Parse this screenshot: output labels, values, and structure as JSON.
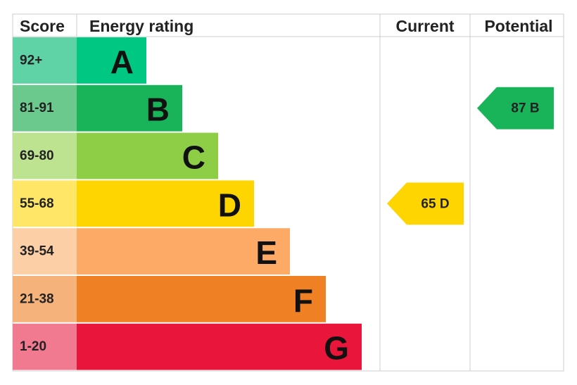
{
  "header": {
    "score": "Score",
    "rating": "Energy rating",
    "current": "Current",
    "potential": "Potential"
  },
  "bands": [
    {
      "range": "92+",
      "letter": "A",
      "color": "#00c781",
      "light": "#5fd3a6"
    },
    {
      "range": "81-91",
      "letter": "B",
      "color": "#19b459",
      "light": "#6cc98e"
    },
    {
      "range": "69-80",
      "letter": "C",
      "color": "#8dce46",
      "light": "#bde390"
    },
    {
      "range": "55-68",
      "letter": "D",
      "color": "#ffd500",
      "light": "#ffe666"
    },
    {
      "range": "39-54",
      "letter": "E",
      "color": "#fcaa65",
      "light": "#fdcfa6"
    },
    {
      "range": "21-38",
      "letter": "F",
      "color": "#ef8023",
      "light": "#f5b37b"
    },
    {
      "range": "1-20",
      "letter": "G",
      "color": "#e9153b",
      "light": "#f27a90"
    }
  ],
  "current": {
    "score": 65,
    "rating": "D"
  },
  "potential": {
    "score": 87,
    "rating": "B"
  }
}
